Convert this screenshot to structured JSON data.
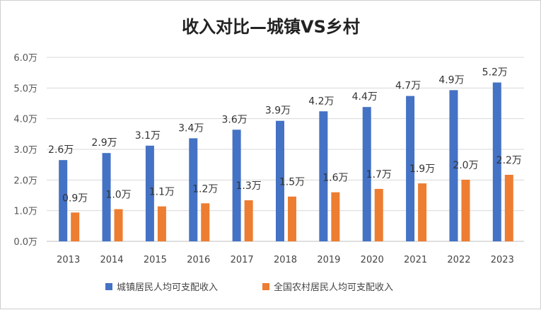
{
  "chart_data": {
    "type": "bar",
    "title": "收入对比—城镇VS乡村",
    "categories": [
      "2013",
      "2014",
      "2015",
      "2016",
      "2017",
      "2018",
      "2019",
      "2020",
      "2021",
      "2022",
      "2023"
    ],
    "series": [
      {
        "name": "城镇居民人均可支配收入",
        "color": "#4472C4",
        "values": [
          2.65,
          2.88,
          3.12,
          3.36,
          3.64,
          3.93,
          4.24,
          4.38,
          4.74,
          4.93,
          5.18
        ],
        "labels": [
          "2.6万",
          "2.9万",
          "3.1万",
          "3.4万",
          "3.6万",
          "3.9万",
          "4.2万",
          "4.4万",
          "4.7万",
          "4.9万",
          "5.2万"
        ]
      },
      {
        "name": "全国农村居民人均可支配收入",
        "color": "#ED7D31",
        "values": [
          0.94,
          1.05,
          1.14,
          1.24,
          1.34,
          1.46,
          1.6,
          1.71,
          1.89,
          2.01,
          2.17
        ],
        "labels": [
          "0.9万",
          "1.0万",
          "1.1万",
          "1.2万",
          "1.3万",
          "1.5万",
          "1.6万",
          "1.7万",
          "1.9万",
          "2.0万",
          "2.2万"
        ]
      }
    ],
    "yticks": [
      "0.0万",
      "1.0万",
      "2.0万",
      "3.0万",
      "4.0万",
      "5.0万",
      "6.0万"
    ],
    "ylim": [
      0,
      6
    ],
    "grid": true,
    "legend_position": "bottom"
  }
}
